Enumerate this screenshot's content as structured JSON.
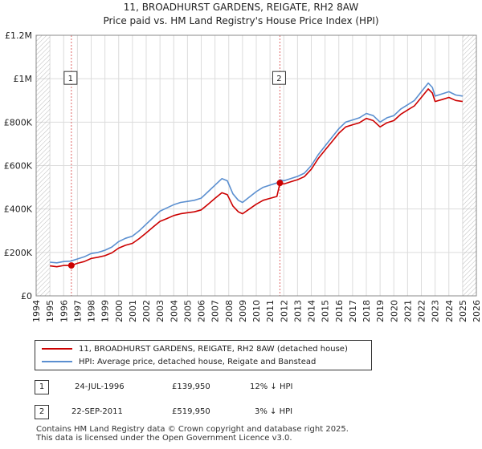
{
  "title": {
    "line1": "11, BROADHURST GARDENS, REIGATE, RH2 8AW",
    "line2": "Price paid vs. HM Land Registry's House Price Index (HPI)"
  },
  "legend": {
    "property_label": "11, BROADHURST GARDENS, REIGATE, RH2 8AW (detached house)",
    "hpi_label": "HPI: Average price, detached house, Reigate and Banstead"
  },
  "transactions": [
    {
      "id": "1",
      "date": "24-JUL-1996",
      "price": "£139,950",
      "hpi_diff": "12% ↓ HPI"
    },
    {
      "id": "2",
      "date": "22-SEP-2011",
      "price": "£519,950",
      "hpi_diff": "3% ↓ HPI"
    }
  ],
  "footer": {
    "line1": "Contains HM Land Registry data © Crown copyright and database right 2025.",
    "line2": "This data is licensed under the Open Government Licence v3.0."
  },
  "colors": {
    "property": "#cc0000",
    "hpi": "#5b8fd0",
    "marker_line": "#e06666",
    "hatch": "#999999",
    "grid": "#dcdcdc"
  },
  "chart_data": {
    "type": "line",
    "x_range": [
      1994,
      2026
    ],
    "ylim": [
      0,
      1200000
    ],
    "yticks": [
      0,
      200000,
      400000,
      600000,
      800000,
      1000000,
      1200000
    ],
    "ytick_labels": [
      "£0",
      "£200K",
      "£400K",
      "£600K",
      "£800K",
      "£1M",
      "£1.2M"
    ],
    "xticks": [
      1994,
      1995,
      1996,
      1997,
      1998,
      1999,
      2000,
      2001,
      2002,
      2003,
      2004,
      2005,
      2006,
      2007,
      2008,
      2009,
      2010,
      2011,
      2012,
      2013,
      2014,
      2015,
      2016,
      2017,
      2018,
      2019,
      2020,
      2021,
      2022,
      2023,
      2024,
      2025,
      2026
    ],
    "hatched_before": 1995.0,
    "hatched_after": 2025.0,
    "markers": [
      {
        "label": "1",
        "x": 1996.56,
        "y": 139950
      },
      {
        "label": "2",
        "x": 2011.72,
        "y": 519950
      }
    ],
    "series": [
      {
        "name": "HPI: Average price, detached house, Reigate and Banstead",
        "x": [
          1995.0,
          1995.5,
          1996.0,
          1996.5,
          1997.0,
          1997.5,
          1998.0,
          1998.5,
          1999.0,
          1999.5,
          2000.0,
          2000.5,
          2001.0,
          2001.5,
          2002.0,
          2002.5,
          2003.0,
          2003.5,
          2004.0,
          2004.5,
          2005.0,
          2005.5,
          2006.0,
          2006.5,
          2007.0,
          2007.5,
          2007.9,
          2008.3,
          2008.7,
          2009.0,
          2009.5,
          2010.0,
          2010.5,
          2011.0,
          2011.5,
          2011.72,
          2012.0,
          2012.5,
          2013.0,
          2013.5,
          2014.0,
          2014.5,
          2015.0,
          2015.5,
          2016.0,
          2016.5,
          2017.0,
          2017.5,
          2018.0,
          2018.5,
          2019.0,
          2019.5,
          2020.0,
          2020.5,
          2021.0,
          2021.5,
          2022.0,
          2022.5,
          2022.8,
          2023.0,
          2023.5,
          2024.0,
          2024.5,
          2025.0
        ],
        "values": [
          155000,
          152000,
          158000,
          160000,
          170000,
          180000,
          195000,
          200000,
          210000,
          225000,
          250000,
          265000,
          275000,
          300000,
          330000,
          360000,
          390000,
          405000,
          420000,
          430000,
          435000,
          440000,
          450000,
          480000,
          510000,
          540000,
          530000,
          470000,
          440000,
          430000,
          455000,
          480000,
          500000,
          510000,
          520000,
          535000,
          530000,
          540000,
          550000,
          565000,
          600000,
          650000,
          690000,
          730000,
          770000,
          800000,
          810000,
          820000,
          840000,
          830000,
          800000,
          820000,
          830000,
          860000,
          880000,
          900000,
          940000,
          980000,
          960000,
          920000,
          930000,
          940000,
          925000,
          920000
        ]
      },
      {
        "name": "11, BROADHURST GARDENS, REIGATE, RH2 8AW (detached house)",
        "x": [
          1995.0,
          1995.5,
          1996.0,
          1996.56,
          1997.0,
          1997.5,
          1998.0,
          1998.5,
          1999.0,
          1999.5,
          2000.0,
          2000.5,
          2001.0,
          2001.5,
          2002.0,
          2002.5,
          2003.0,
          2003.5,
          2004.0,
          2004.5,
          2005.0,
          2005.5,
          2006.0,
          2006.5,
          2007.0,
          2007.5,
          2007.9,
          2008.3,
          2008.7,
          2009.0,
          2009.5,
          2010.0,
          2010.5,
          2011.0,
          2011.5,
          2011.72,
          2012.0,
          2012.5,
          2013.0,
          2013.5,
          2014.0,
          2014.5,
          2015.0,
          2015.5,
          2016.0,
          2016.5,
          2017.0,
          2017.5,
          2018.0,
          2018.5,
          2019.0,
          2019.5,
          2020.0,
          2020.5,
          2021.0,
          2021.5,
          2022.0,
          2022.5,
          2022.8,
          2023.0,
          2023.5,
          2024.0,
          2024.5,
          2025.0
        ],
        "values": [
          138000,
          134000,
          140000,
          139950,
          150000,
          158000,
          172000,
          178000,
          185000,
          198000,
          220000,
          233000,
          242000,
          264000,
          290000,
          317000,
          343000,
          356000,
          370000,
          378000,
          383000,
          387000,
          396000,
          422000,
          449000,
          475000,
          466000,
          414000,
          387000,
          378000,
          400000,
          422000,
          440000,
          449000,
          458000,
          519950,
          515000,
          525000,
          535000,
          549000,
          583000,
          632000,
          671000,
          710000,
          749000,
          778000,
          788000,
          797000,
          817000,
          807000,
          778000,
          797000,
          807000,
          836000,
          856000,
          875000,
          914000,
          953000,
          934000,
          895000,
          904000,
          914000,
          900000,
          895000
        ]
      }
    ]
  }
}
